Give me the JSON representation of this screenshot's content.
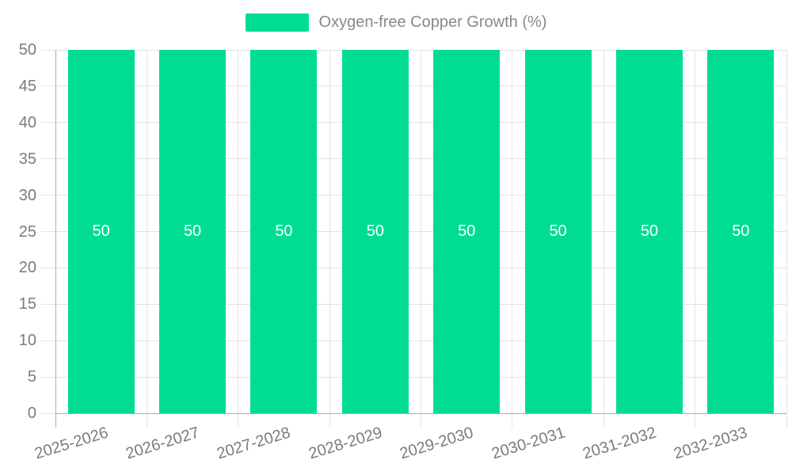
{
  "legend": {
    "label": "Oxygen-free Copper Growth (%)"
  },
  "chart_data": {
    "type": "bar",
    "title": "Oxygen-free Copper Growth (%)",
    "categories": [
      "2025-2026",
      "2026-2027",
      "2027-2028",
      "2028-2029",
      "2029-2030",
      "2030-2031",
      "2031-2032",
      "2032-2033"
    ],
    "series": [
      {
        "name": "Oxygen-free Copper Growth (%)",
        "values": [
          50,
          50,
          50,
          50,
          50,
          50,
          50,
          50
        ]
      }
    ],
    "value_labels": [
      "50",
      "50",
      "50",
      "50",
      "50",
      "50",
      "50",
      "50"
    ],
    "xlabel": "",
    "ylabel": "",
    "ylim": [
      0,
      50
    ],
    "ytick_step": 5,
    "yticks": [
      0,
      5,
      10,
      15,
      20,
      25,
      30,
      35,
      40,
      45,
      50
    ],
    "grid": "horizontal gridlines at each y tick and vertical gridlines at category boundaries",
    "legend_position": "top-center"
  },
  "colors": {
    "bar": "#00DD93",
    "axis_line": "#ABABAB",
    "gridline": "#E4E4E4",
    "tick_label_text": "#7B7B7B",
    "legend_text": "#888888",
    "value_label_text": "#FFFFFF",
    "background": "#FFFFFF"
  }
}
